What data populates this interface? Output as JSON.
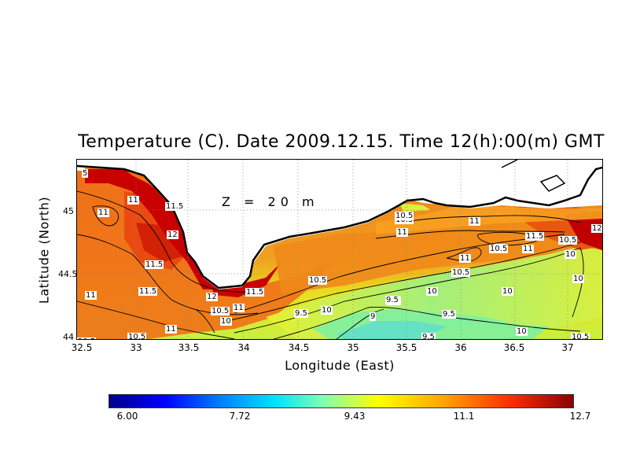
{
  "title": "Temperature (C). Date 2009.12.15. Time 12(h):00(m) GMT",
  "depth_label": "Z = 20 m",
  "x_axis": {
    "label": "Longitude (East)",
    "ticks": [
      "32.5",
      "33",
      "33.5",
      "34",
      "34.5",
      "35",
      "35.5",
      "36",
      "36.5",
      "37"
    ]
  },
  "y_axis": {
    "label": "Latitude (North)",
    "ticks": [
      "45",
      "44.5",
      "44"
    ]
  },
  "colorbar": {
    "ticks": [
      "6.00",
      "7.72",
      "9.43",
      "11.1",
      "12.7"
    ],
    "min": 6.0,
    "max": 12.7
  },
  "contour_labels": [
    {
      "text": "11"
    },
    {
      "text": "11"
    },
    {
      "text": "11.5"
    },
    {
      "text": "12"
    },
    {
      "text": "11.5"
    },
    {
      "text": "11.5"
    },
    {
      "text": "11"
    },
    {
      "text": "11"
    },
    {
      "text": "12"
    },
    {
      "text": "11.5"
    },
    {
      "text": "11"
    },
    {
      "text": "10.5"
    },
    {
      "text": "10"
    },
    {
      "text": "9.5"
    },
    {
      "text": "10"
    },
    {
      "text": "10.5"
    },
    {
      "text": "9"
    },
    {
      "text": "9.5"
    },
    {
      "text": "10"
    },
    {
      "text": "10.5"
    },
    {
      "text": "11"
    },
    {
      "text": "11"
    },
    {
      "text": "9.5"
    },
    {
      "text": "10"
    },
    {
      "text": "10.5"
    },
    {
      "text": "11"
    },
    {
      "text": "11"
    },
    {
      "text": "11.5"
    },
    {
      "text": "10.5"
    },
    {
      "text": "10.5"
    },
    {
      "text": "10.5"
    },
    {
      "text": "9.5"
    },
    {
      "text": "11"
    },
    {
      "text": "10"
    },
    {
      "text": "12"
    },
    {
      "text": "10"
    },
    {
      "text": "10"
    },
    {
      "text": "10.5"
    },
    {
      "text": "10.5"
    },
    {
      "text": "10.5"
    },
    {
      "text": "9.5"
    },
    {
      "text": "5"
    }
  ],
  "colors": {
    "warm_max": "#b40000",
    "hot": "#e02000",
    "orange": "#f07010",
    "light_orange": "#f8a020",
    "yellow": "#f0e820",
    "yellowgreen": "#c8f040",
    "green": "#80f0a0",
    "cyan": "#60e8d0"
  }
}
